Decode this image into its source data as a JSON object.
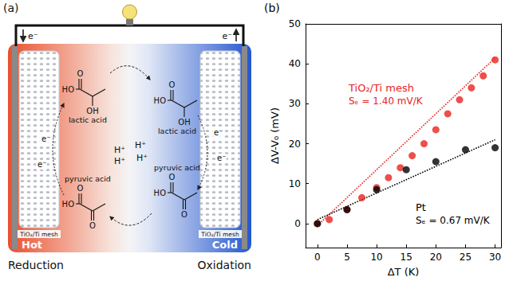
{
  "diagram": {
    "panel_label": "(a)",
    "wire_electrons": [
      "e⁻",
      "e⁻"
    ],
    "electrodes": [
      {
        "label": "TiO₂/Ti mesh",
        "zone": "Hot",
        "reaction": "Reduction",
        "electrons": [
          "e⁻",
          "e⁻"
        ]
      },
      {
        "label": "TiO₂/Ti mesh",
        "zone": "Cold",
        "reaction": "Oxidation",
        "electrons": [
          "e⁻",
          "e⁻"
        ]
      }
    ],
    "molecules": {
      "top": [
        {
          "name": "lactic acid",
          "atoms": [
            "HO",
            "O",
            "OH"
          ]
        },
        {
          "name": "lactic acid",
          "atoms": [
            "HO",
            "O",
            "OH"
          ]
        }
      ],
      "bottom": [
        {
          "name": "pyruvic acid",
          "atoms": [
            "HO",
            "O",
            "O"
          ]
        },
        {
          "name": "pyruvic acid",
          "atoms": [
            "HO",
            "O",
            "O"
          ]
        }
      ]
    },
    "protons": [
      "H⁺",
      "H⁺",
      "H⁺",
      "H⁺"
    ]
  },
  "chart_data": {
    "type": "scatter",
    "panel_label": "(b)",
    "x_label": "ΔT (K)",
    "y_label": "ΔV-V₀ (mV)",
    "xlim": [
      -2,
      31
    ],
    "xticks": [
      0,
      5,
      10,
      15,
      20,
      25,
      30
    ],
    "ylim": [
      -6,
      50
    ],
    "yticks": [
      0,
      10,
      20,
      30,
      40,
      50
    ],
    "grid": false,
    "series": [
      {
        "name": "TiO₂/Ti mesh",
        "color": "#e8231f",
        "marker": "circle",
        "x": [
          0,
          2,
          5,
          7.5,
          10,
          12,
          14,
          16,
          18,
          20,
          22,
          24,
          26,
          28,
          30
        ],
        "values": [
          0,
          1,
          3.5,
          6.5,
          9,
          11.5,
          14,
          17,
          20,
          23.5,
          27.5,
          31,
          34,
          37,
          41
        ],
        "fit": {
          "x": [
            0,
            30
          ],
          "values": [
            -0.5,
            41.5
          ],
          "line_style": "dotted",
          "label": "Sₑ = 1.40 mV/K"
        }
      },
      {
        "name": "Pt",
        "color": "#000000",
        "marker": "circle",
        "x": [
          0,
          5,
          10,
          15,
          20,
          25,
          30
        ],
        "values": [
          0,
          3.5,
          8.5,
          13.5,
          15.5,
          18.5,
          19
        ],
        "fit": {
          "x": [
            0,
            30
          ],
          "values": [
            1,
            21
          ],
          "line_style": "dotted",
          "label": "Sₑ = 0.67 mV/K"
        }
      }
    ]
  }
}
